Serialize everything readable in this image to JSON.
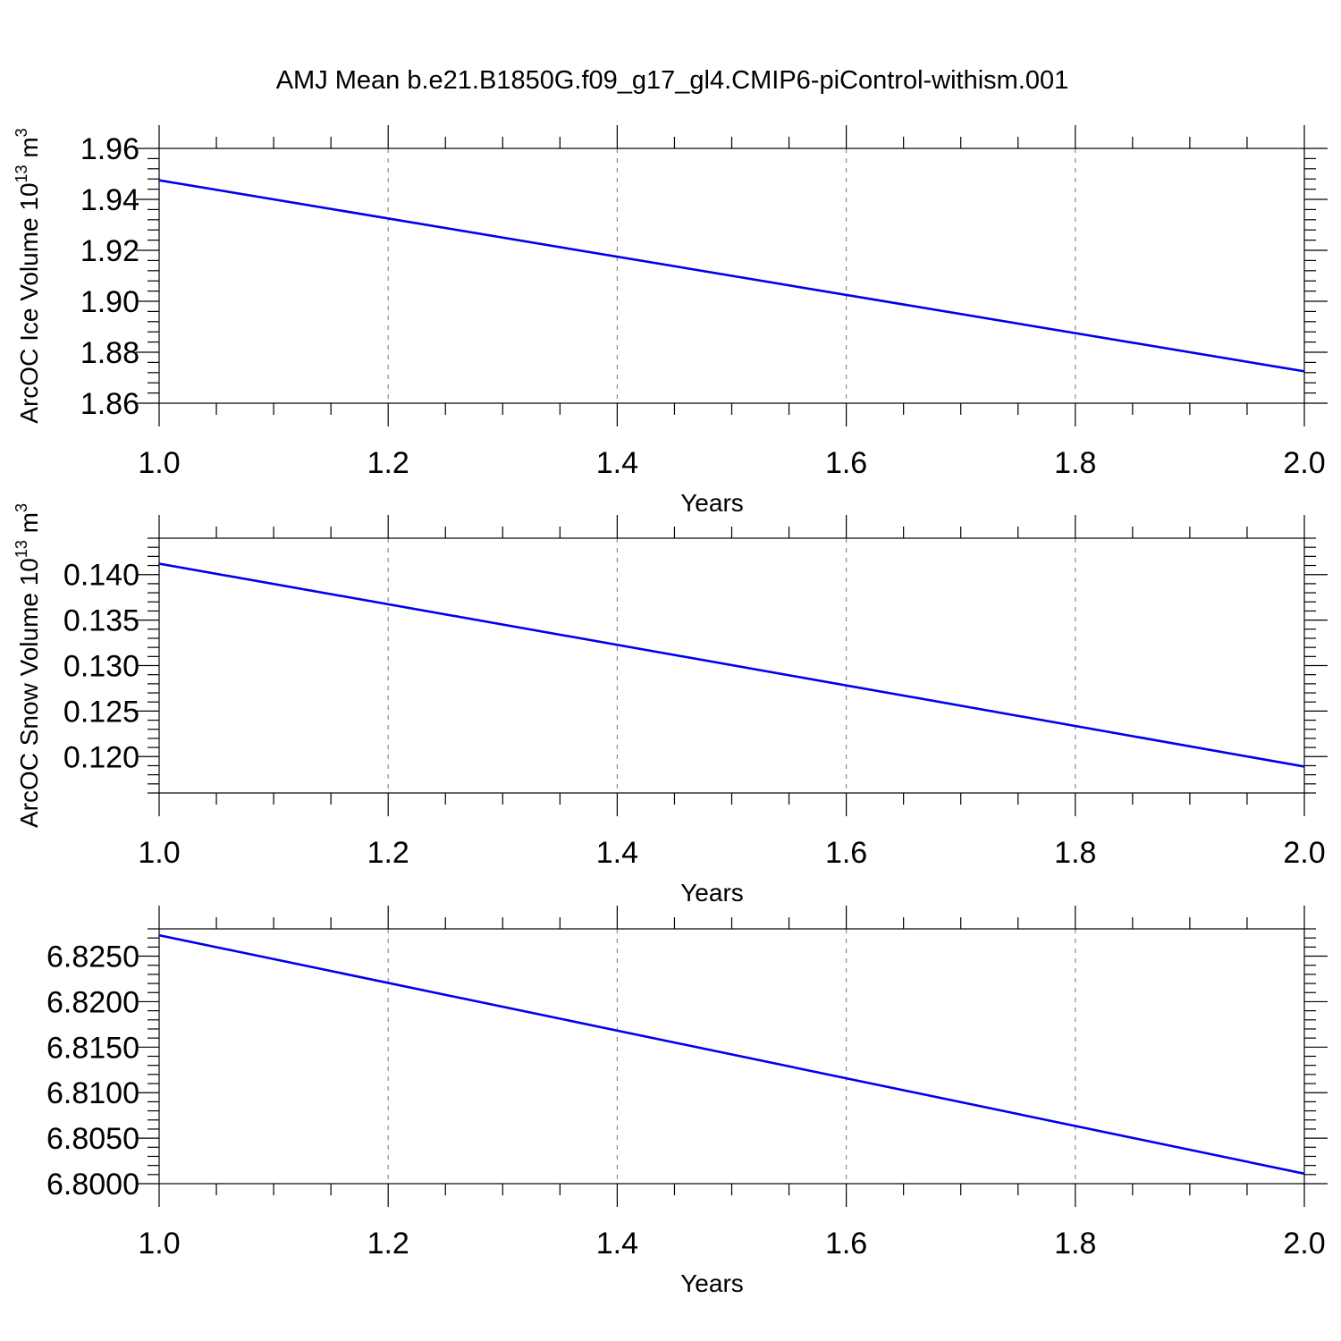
{
  "figure": {
    "title": "AMJ Mean b.e21.B1850G.f09_g17_gl4.CMIP6-piControl-withism.001"
  },
  "chart_data": [
    {
      "type": "line",
      "title": "",
      "xlabel": "Years",
      "ylabel": "ArcOC Ice Volume 10",
      "ylabel_exponent": "13",
      "ylabel_unit": "m",
      "ylabel_unit_exponent": "3",
      "xlim": [
        1.0,
        2.0
      ],
      "ylim": [
        1.86,
        1.96
      ],
      "xticks": [
        "1.0",
        "1.2",
        "1.4",
        "1.6",
        "1.8",
        "2.0"
      ],
      "yticks": [
        "1.86",
        "1.88",
        "1.90",
        "1.92",
        "1.94",
        "1.96"
      ],
      "grid": "x dashed",
      "series": [
        {
          "color": "#0000ee",
          "x": [
            1.0,
            2.0
          ],
          "y": [
            1.9475,
            1.8725
          ]
        }
      ]
    },
    {
      "type": "line",
      "title": "",
      "xlabel": "Years",
      "ylabel": "ArcOC Snow Volume 10",
      "ylabel_exponent": "13",
      "ylabel_unit": "m",
      "ylabel_unit_exponent": "3",
      "xlim": [
        1.0,
        2.0
      ],
      "ylim": [
        0.116,
        0.144
      ],
      "xticks": [
        "1.0",
        "1.2",
        "1.4",
        "1.6",
        "1.8",
        "2.0"
      ],
      "yticks": [
        "0.120",
        "0.125",
        "0.130",
        "0.135",
        "0.140"
      ],
      "grid": "x dashed",
      "series": [
        {
          "color": "#0000ee",
          "x": [
            1.0,
            2.0
          ],
          "y": [
            0.1412,
            0.1189
          ]
        }
      ]
    },
    {
      "type": "line",
      "title": "",
      "xlabel": "Years",
      "ylabel": "",
      "xlim": [
        1.0,
        2.0
      ],
      "ylim": [
        6.8,
        6.828
      ],
      "xticks": [
        "1.0",
        "1.2",
        "1.4",
        "1.6",
        "1.8",
        "2.0"
      ],
      "yticks": [
        "6.8000",
        "6.8050",
        "6.8100",
        "6.8150",
        "6.8200",
        "6.8250"
      ],
      "grid": "x dashed",
      "series": [
        {
          "color": "#0000ee",
          "x": [
            1.0,
            2.0
          ],
          "y": [
            6.8273,
            6.8011
          ]
        }
      ]
    }
  ]
}
